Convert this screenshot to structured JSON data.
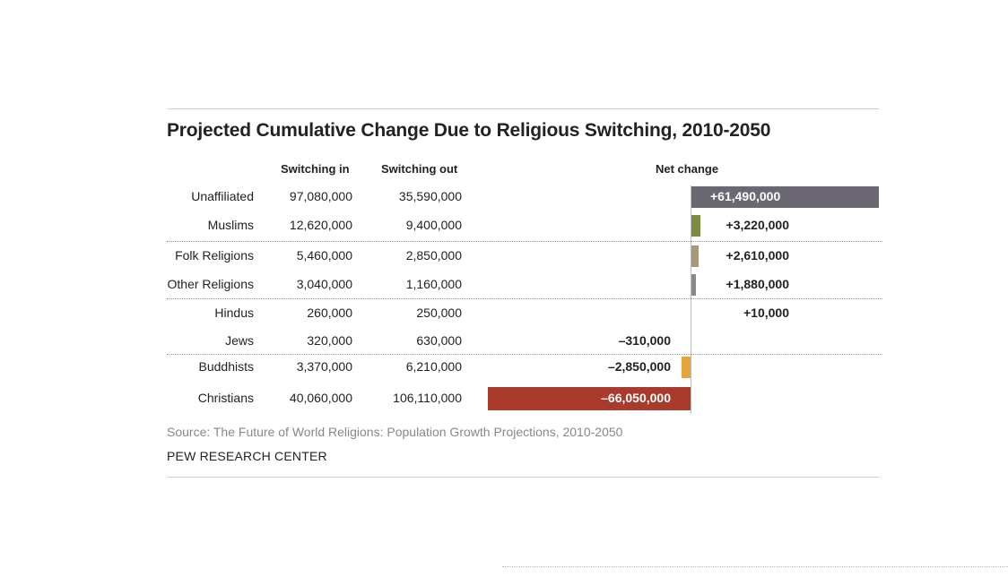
{
  "chart_data": {
    "type": "table",
    "title": "Projected Cumulative Change Due to Religious Switching, 2010-2050",
    "columns": [
      "Switching in",
      "Switching out",
      "Net change"
    ],
    "rows": [
      {
        "label": "Unaffiliated",
        "switching_in": "97,080,000",
        "switching_out": "35,590,000",
        "net_label": "+61,490,000",
        "net": 61490000,
        "color": "#6b6873"
      },
      {
        "label": "Muslims",
        "switching_in": "12,620,000",
        "switching_out": "9,400,000",
        "net_label": "+3,220,000",
        "net": 3220000,
        "color": "#7b8c3e"
      },
      {
        "label": "Folk Religions",
        "switching_in": "5,460,000",
        "switching_out": "2,850,000",
        "net_label": "+2,610,000",
        "net": 2610000,
        "color": "#a7987a"
      },
      {
        "label": "Other Religions",
        "switching_in": "3,040,000",
        "switching_out": "1,160,000",
        "net_label": "+1,880,000",
        "net": 1880000,
        "color": "#8a8a8a"
      },
      {
        "label": "Hindus",
        "switching_in": "260,000",
        "switching_out": "250,000",
        "net_label": "+10,000",
        "net": 10000,
        "color": "#c9a13c"
      },
      {
        "label": "Jews",
        "switching_in": "320,000",
        "switching_out": "630,000",
        "net_label": "–310,000",
        "net": -310000,
        "color": "#3e6fa8"
      },
      {
        "label": "Buddhists",
        "switching_in": "3,370,000",
        "switching_out": "6,210,000",
        "net_label": "–2,850,000",
        "net": -2850000,
        "color": "#e8a33a"
      },
      {
        "label": "Christians",
        "switching_in": "40,060,000",
        "switching_out": "106,110,000",
        "net_label": "–66,050,000",
        "net": -66050000,
        "color": "#a83b2c"
      }
    ]
  },
  "footer": {
    "source": "Source: The Future of World Religions: Population Growth Projections, 2010-2050",
    "org": "PEW RESEARCH CENTER"
  }
}
